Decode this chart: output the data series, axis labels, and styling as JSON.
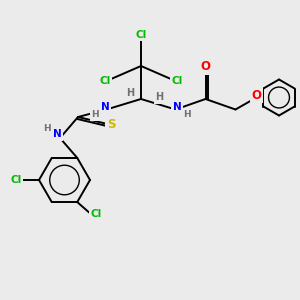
{
  "bg_color": "#ebebeb",
  "colors": {
    "Cl": "#00bb00",
    "N": "#0000ff",
    "O": "#ff0000",
    "S": "#ccbb00",
    "H": "#707070",
    "bond": "#000000"
  }
}
